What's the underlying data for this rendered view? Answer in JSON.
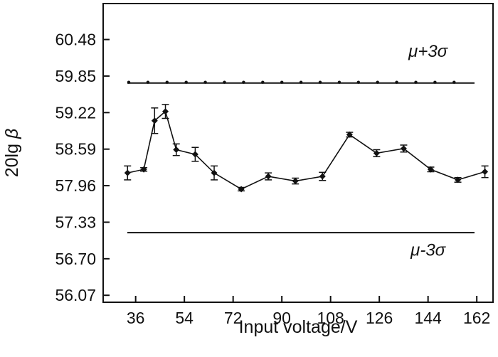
{
  "chart_data": {
    "type": "line",
    "title": "",
    "xlabel": "Input voltage/V",
    "ylabel_main": "20lg ",
    "ylabel_symbol": "β",
    "xlim": [
      24,
      168
    ],
    "ylim": [
      55.95,
      61.1
    ],
    "xticks": [
      36,
      54,
      72,
      90,
      108,
      126,
      144,
      162
    ],
    "xtick_labels": [
      "36",
      "54",
      "72",
      "90",
      "108",
      "126",
      "144",
      "162"
    ],
    "yticks": [
      56.07,
      56.7,
      57.33,
      57.96,
      58.59,
      59.22,
      59.85,
      60.48
    ],
    "ytick_labels": [
      "56.07",
      "56.70",
      "57.33",
      "57.96",
      "58.59",
      "59.22",
      "59.85",
      "60.48"
    ],
    "grid": false,
    "series": [
      {
        "x": [
          33,
          39,
          43,
          47,
          51,
          58,
          65,
          75,
          85,
          95,
          105,
          115,
          125,
          135,
          145,
          155,
          165
        ],
        "y": [
          58.18,
          58.24,
          59.08,
          59.24,
          58.58,
          58.5,
          58.18,
          57.9,
          58.12,
          58.04,
          58.12,
          58.84,
          58.52,
          58.6,
          58.24,
          58.06,
          58.2
        ],
        "err": [
          0.12,
          0.03,
          0.22,
          0.12,
          0.1,
          0.12,
          0.12,
          0.03,
          0.06,
          0.05,
          0.07,
          0.04,
          0.06,
          0.06,
          0.04,
          0.04,
          0.1
        ],
        "color": "#111111"
      }
    ],
    "annotations": [
      {
        "text": "μ+3σ",
        "y": 60.28,
        "x": 144
      },
      {
        "text": "μ-3σ",
        "y": 56.85,
        "x": 144
      }
    ],
    "reference_lines": [
      {
        "name": "upper-limit",
        "y": 59.73,
        "style": "dotted-solid"
      },
      {
        "name": "lower-limit",
        "y": 57.15,
        "style": "solid"
      }
    ]
  }
}
